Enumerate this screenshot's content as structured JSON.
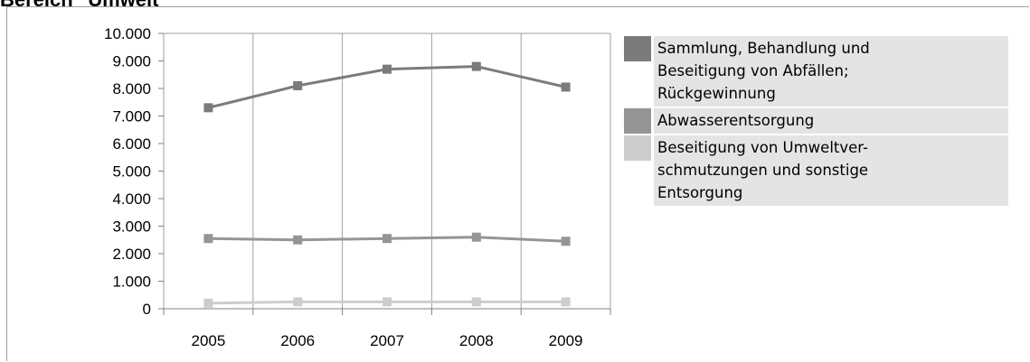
{
  "heading": "Bereich \"Umwelt\"",
  "colors": {
    "series_1": "#7b7b7b",
    "series_2": "#959595",
    "series_3": "#cdcdcd",
    "legend_bg": "#e4e4e4",
    "grid": "#a0a0a0"
  },
  "chart_data": {
    "type": "line",
    "x": [
      "2005",
      "2006",
      "2007",
      "2008",
      "2009"
    ],
    "ylim": [
      0,
      10000
    ],
    "y_ticks": [
      "0",
      "1.000",
      "2.000",
      "3.000",
      "4.000",
      "5.000",
      "6.000",
      "7.000",
      "8.000",
      "9.000",
      "10.000"
    ],
    "grid": true,
    "legend_position": "right",
    "series": [
      {
        "name": "Sammlung, Behandlung und\nBeseitigung von Abfällen;\nRückgewinnung",
        "values": [
          7300,
          8100,
          8700,
          8800,
          8050
        ],
        "color": "#7b7b7b"
      },
      {
        "name": "Abwasserentsorgung",
        "values": [
          2550,
          2500,
          2550,
          2600,
          2450
        ],
        "color": "#959595"
      },
      {
        "name": "Beseitigung von Umweltver-\nschmutzungen und sonstige\nEntsorgung",
        "values": [
          200,
          250,
          250,
          250,
          250
        ],
        "color": "#cdcdcd"
      }
    ]
  }
}
